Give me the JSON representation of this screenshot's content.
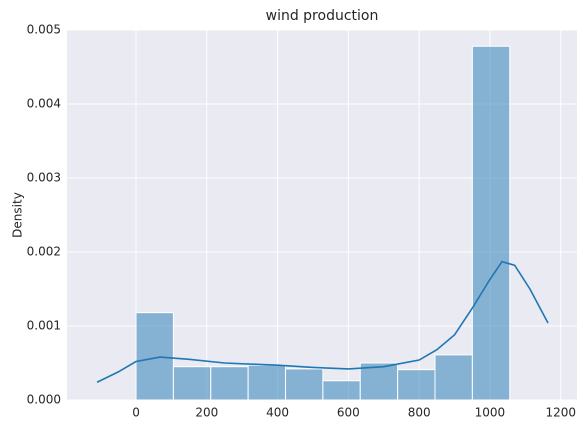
{
  "chart_data": {
    "type": "histogram",
    "title": "wind production",
    "y_label": "Density",
    "bins": [
      0,
      105.6,
      211.2,
      316.8,
      422.4,
      528,
      633.6,
      739.2,
      844.8,
      950.4,
      1056
    ],
    "values": [
      0.00118,
      0.00045,
      0.00045,
      0.00047,
      0.00042,
      0.00026,
      0.0005,
      0.00041,
      0.00061,
      0.00478
    ],
    "color": "#1f77b4",
    "kde": {
      "color": "#1f77b4",
      "x": [
        -110,
        -50,
        0,
        68,
        150,
        250,
        400,
        500,
        600,
        700,
        800,
        850,
        900,
        950,
        1000,
        1034,
        1070,
        1113,
        1164
      ],
      "values": [
        0.00024,
        0.00038,
        0.00052,
        0.00058,
        0.00055,
        0.0005,
        0.00047,
        0.00044,
        0.00042,
        0.00045,
        0.00054,
        0.00068,
        0.00088,
        0.00124,
        0.00163,
        0.00187,
        0.00182,
        0.0015,
        0.00104
      ]
    },
    "xlim": [
      -195,
      1246
    ],
    "xticks": [
      0,
      200,
      400,
      600,
      800,
      1000,
      1200
    ],
    "ylim": [
      0,
      0.005
    ],
    "yticks": [
      {
        "value": 0,
        "label": "0.000"
      },
      {
        "value": 0.001,
        "label": "0.001"
      },
      {
        "value": 0.002,
        "label": "0.002"
      },
      {
        "value": 0.003,
        "label": "0.003"
      },
      {
        "value": 0.004,
        "label": "0.004"
      },
      {
        "value": 0.005,
        "label": "0.005"
      }
    ],
    "grid": true
  }
}
